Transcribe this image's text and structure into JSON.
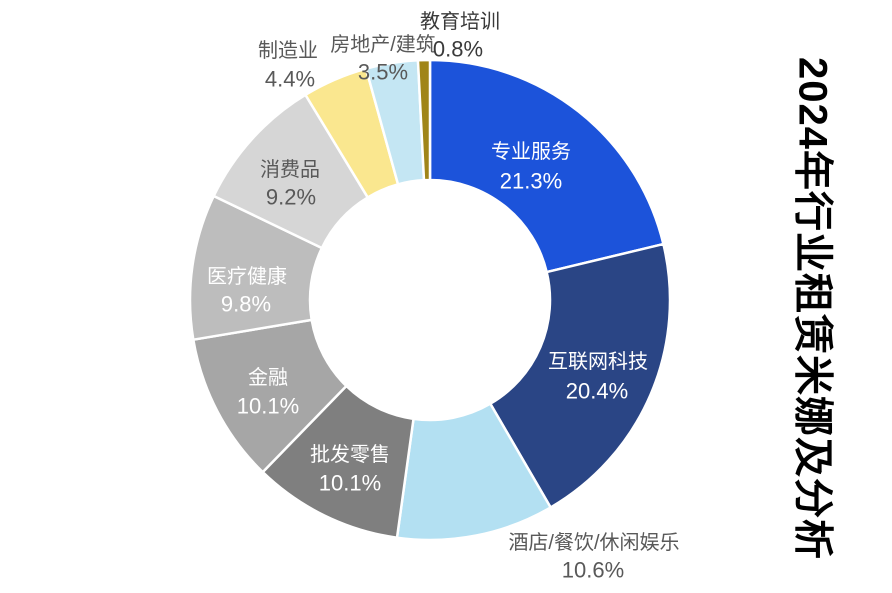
{
  "title": {
    "text": "2024年行业租赁米娜及分析"
  },
  "chart_data": {
    "type": "pie",
    "subtype": "donut",
    "title": "2024年行业租赁米娜及分析",
    "start_angle_deg": 0,
    "direction": "clockwise",
    "legend": "none",
    "background_color": "#ffffff",
    "separator_color": "#ffffff",
    "slices": [
      {
        "label": "专业服务",
        "value": 21.3,
        "color": "#1C53DA",
        "label_color": "#ffffff",
        "label_position": "inside"
      },
      {
        "label": "互联网科技",
        "value": 20.4,
        "color": "#2A4585",
        "label_color": "#ffffff",
        "label_position": "inside"
      },
      {
        "label": "酒店/餐饮/休闲娱乐",
        "value": 10.6,
        "color": "#B3E0F2",
        "label_color": "#595959",
        "label_position": "outside"
      },
      {
        "label": "批发零售",
        "value": 10.1,
        "color": "#7F7F7F",
        "label_color": "#ffffff",
        "label_position": "inside"
      },
      {
        "label": "金融",
        "value": 10.1,
        "color": "#A6A6A6",
        "label_color": "#ffffff",
        "label_position": "inside"
      },
      {
        "label": "医疗健康",
        "value": 9.8,
        "color": "#BDBDBD",
        "label_color": "#ffffff",
        "label_position": "inside"
      },
      {
        "label": "消费品",
        "value": 9.2,
        "color": "#D6D6D6",
        "label_color": "#595959",
        "label_position": "inside"
      },
      {
        "label": "制造业",
        "value": 4.4,
        "color": "#FAE78F",
        "label_color": "#595959",
        "label_position": "outside"
      },
      {
        "label": "房地产/建筑",
        "value": 3.5,
        "color": "#C4E6F3",
        "label_color": "#595959",
        "label_position": "outside"
      },
      {
        "label": "教育培训",
        "value": 0.8,
        "color": "#A08518",
        "label_color": "#3A3A3A",
        "label_position": "outside"
      }
    ]
  }
}
